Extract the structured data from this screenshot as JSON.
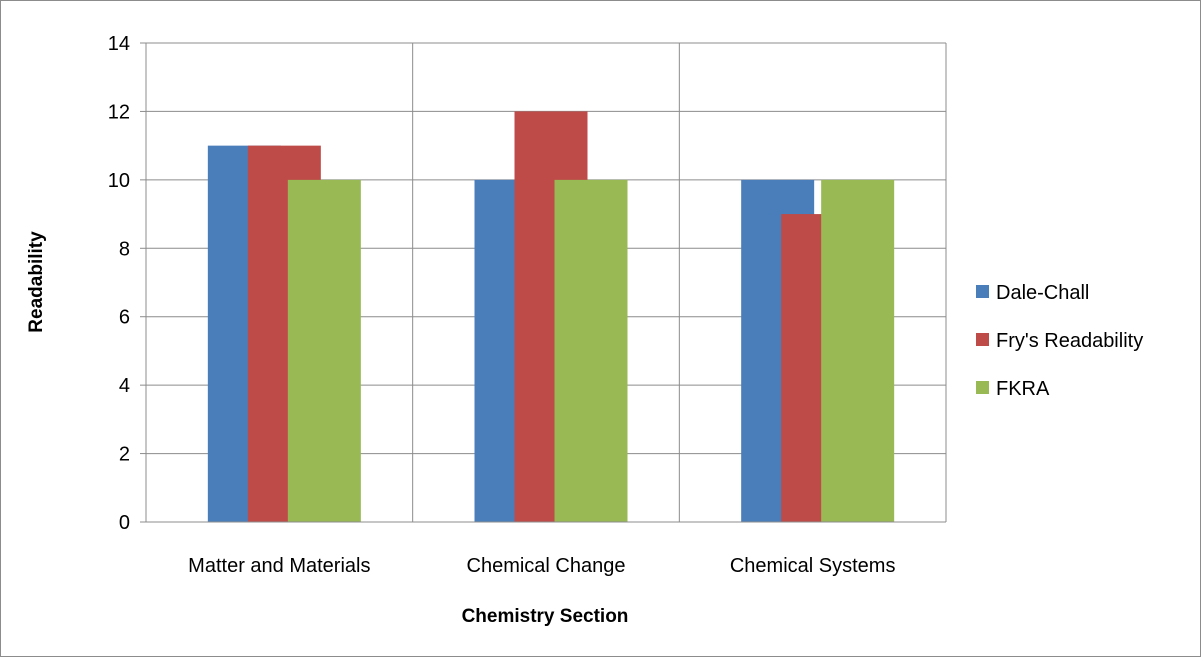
{
  "chart_data": {
    "type": "bar",
    "title": "",
    "xlabel": "Chemistry Section",
    "ylabel": "Readability",
    "categories": [
      "Matter and Materials",
      "Chemical Change",
      "Chemical Systems"
    ],
    "series": [
      {
        "name": "Dale-Chall",
        "color": "#4a7ebb",
        "values": [
          11,
          10,
          10
        ]
      },
      {
        "name": "Fry's Readability",
        "color": "#be4b48",
        "values": [
          11,
          12,
          9
        ]
      },
      {
        "name": "FKRA",
        "color": "#98b954",
        "values": [
          10,
          10,
          10
        ]
      }
    ],
    "ylim": [
      0,
      14
    ],
    "yticks": [
      0,
      2,
      4,
      6,
      8,
      10,
      12,
      14
    ],
    "grid": true,
    "legend_position": "right"
  }
}
